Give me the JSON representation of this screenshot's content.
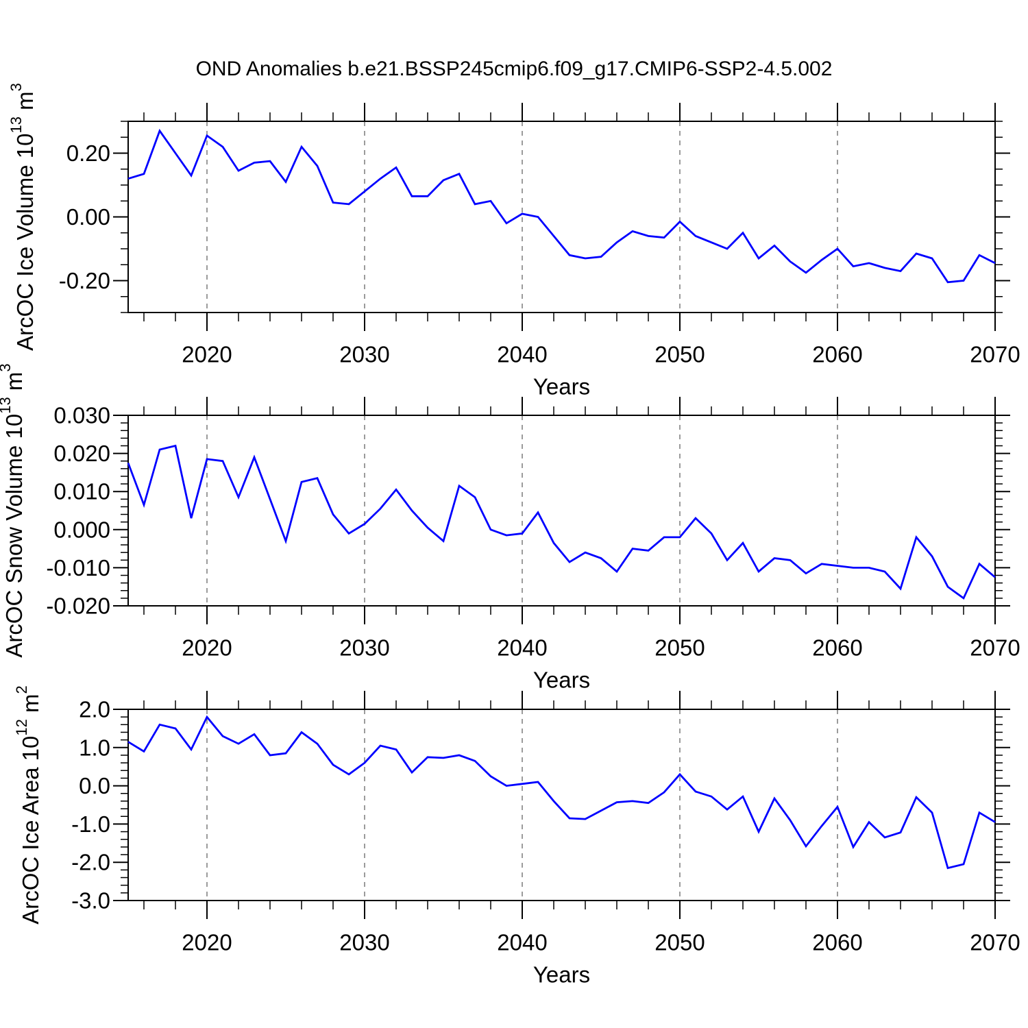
{
  "title": "OND Anomalies b.e21.BSSP245cmip6.f09_g17.CMIP6-SSP2-4.5.002",
  "colors": {
    "line": "#0000ff",
    "grid": "#7a7a7a",
    "axis": "#000000",
    "text": "#000000",
    "background": "#ffffff"
  },
  "chart_data": {
    "type": "line",
    "title": "OND Anomalies b.e21.BSSP245cmip6.f09_g17.CMIP6-SSP2-4.5.002",
    "x_label": "Years",
    "years": [
      2015,
      2016,
      2017,
      2018,
      2019,
      2020,
      2021,
      2022,
      2023,
      2024,
      2025,
      2026,
      2027,
      2028,
      2029,
      2030,
      2031,
      2032,
      2033,
      2034,
      2035,
      2036,
      2037,
      2038,
      2039,
      2040,
      2041,
      2042,
      2043,
      2044,
      2045,
      2046,
      2047,
      2048,
      2049,
      2050,
      2051,
      2052,
      2053,
      2054,
      2055,
      2056,
      2057,
      2058,
      2059,
      2060,
      2061,
      2062,
      2063,
      2064,
      2065,
      2066,
      2067,
      2068,
      2069,
      2070
    ],
    "x_ticks": [
      {
        "v": 2020,
        "label": "2020"
      },
      {
        "v": 2030,
        "label": "2030"
      },
      {
        "v": 2040,
        "label": "2040"
      },
      {
        "v": 2050,
        "label": "2050"
      },
      {
        "v": 2060,
        "label": "2060"
      },
      {
        "v": 2070,
        "label": "2070"
      }
    ],
    "x_minor_step": 2,
    "gridline_years": [
      2020,
      2030,
      2040,
      2050,
      2060
    ],
    "legend": "none",
    "grid": "vertical-dashed",
    "panels": [
      {
        "name": "ice-volume",
        "ylabel_text": "ArcOC Ice Volume 10^13 m^3",
        "ylabel_parts": [
          {
            "t": "ArcOC Ice Volume 10"
          },
          {
            "s": "13"
          },
          {
            "t": " m"
          },
          {
            "s": "3"
          }
        ],
        "xlabel": "Years",
        "ylim": [
          -0.3,
          0.3
        ],
        "y_ticks": [
          {
            "v": 0.2,
            "label": "0.20"
          },
          {
            "v": 0.0,
            "label": "0.00"
          },
          {
            "v": -0.2,
            "label": "-0.20"
          }
        ],
        "y_minor_step": 0.05,
        "values": [
          0.12,
          0.135,
          0.27,
          0.2,
          0.13,
          0.255,
          0.22,
          0.145,
          0.17,
          0.175,
          0.11,
          0.22,
          0.16,
          0.045,
          0.04,
          0.08,
          0.12,
          0.155,
          0.065,
          0.065,
          0.115,
          0.135,
          0.04,
          0.05,
          -0.02,
          0.01,
          0.0,
          -0.06,
          -0.12,
          -0.13,
          -0.125,
          -0.08,
          -0.045,
          -0.06,
          -0.065,
          -0.015,
          -0.06,
          -0.08,
          -0.1,
          -0.05,
          -0.13,
          -0.09,
          -0.14,
          -0.175,
          -0.135,
          -0.1,
          -0.155,
          -0.145,
          -0.16,
          -0.17,
          -0.115,
          -0.13,
          -0.205,
          -0.2,
          -0.12,
          -0.145
        ]
      },
      {
        "name": "snow-volume",
        "ylabel_text": "ArcOC Snow Volume 10^13 m^3",
        "ylabel_parts": [
          {
            "t": "ArcOC Snow Volume 10"
          },
          {
            "s": "13"
          },
          {
            "t": " m"
          },
          {
            "s": "3"
          }
        ],
        "xlabel": "Years",
        "ylim": [
          -0.02,
          0.03
        ],
        "y_ticks": [
          {
            "v": 0.03,
            "label": "0.030"
          },
          {
            "v": 0.02,
            "label": "0.020"
          },
          {
            "v": 0.01,
            "label": "0.010"
          },
          {
            "v": 0.0,
            "label": "0.000"
          },
          {
            "v": -0.01,
            "label": "-0.010"
          },
          {
            "v": -0.02,
            "label": "-0.020"
          }
        ],
        "y_minor_step": 0.002,
        "values": [
          0.0175,
          0.0065,
          0.021,
          0.022,
          0.003,
          0.0185,
          0.018,
          0.0085,
          0.019,
          0.008,
          -0.003,
          0.0125,
          0.0135,
          0.004,
          -0.001,
          0.0015,
          0.0055,
          0.0105,
          0.005,
          0.0005,
          -0.003,
          0.0115,
          0.0085,
          0.0,
          -0.0015,
          -0.001,
          0.0045,
          -0.0035,
          -0.0085,
          -0.006,
          -0.0075,
          -0.011,
          -0.005,
          -0.0055,
          -0.002,
          -0.002,
          0.003,
          -0.001,
          -0.008,
          -0.0035,
          -0.011,
          -0.0075,
          -0.008,
          -0.0115,
          -0.009,
          -0.0095,
          -0.01,
          -0.01,
          -0.011,
          -0.0155,
          -0.002,
          -0.007,
          -0.015,
          -0.018,
          -0.009,
          -0.0125
        ]
      },
      {
        "name": "ice-area",
        "ylabel_text": "ArcOC Ice Area 10^12 m^2",
        "ylabel_parts": [
          {
            "t": "ArcOC Ice Area 10"
          },
          {
            "s": "12"
          },
          {
            "t": " m"
          },
          {
            "s": "2"
          }
        ],
        "xlabel": "Years",
        "ylim": [
          -3.0,
          2.0
        ],
        "y_ticks": [
          {
            "v": 2.0,
            "label": "2.0"
          },
          {
            "v": 1.0,
            "label": "1.0"
          },
          {
            "v": 0.0,
            "label": "0.0"
          },
          {
            "v": -1.0,
            "label": "-1.0"
          },
          {
            "v": -2.0,
            "label": "-2.0"
          },
          {
            "v": -3.0,
            "label": "-3.0"
          }
        ],
        "y_minor_step": 0.2,
        "values": [
          1.15,
          0.9,
          1.6,
          1.5,
          0.95,
          1.8,
          1.3,
          1.1,
          1.35,
          0.8,
          0.85,
          1.4,
          1.1,
          0.55,
          0.3,
          0.6,
          1.05,
          0.95,
          0.35,
          0.75,
          0.73,
          0.8,
          0.65,
          0.25,
          0.0,
          0.05,
          0.1,
          -0.4,
          -0.85,
          -0.87,
          -0.65,
          -0.43,
          -0.4,
          -0.45,
          -0.17,
          0.3,
          -0.15,
          -0.28,
          -0.62,
          -0.28,
          -1.2,
          -0.33,
          -0.9,
          -1.58,
          -1.05,
          -0.55,
          -1.6,
          -0.95,
          -1.35,
          -1.22,
          -0.3,
          -0.7,
          -2.15,
          -2.05,
          -0.7,
          -0.95
        ]
      }
    ]
  }
}
